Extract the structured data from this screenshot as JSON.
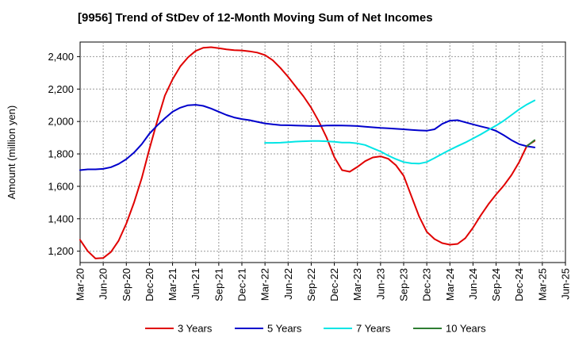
{
  "chart_data": {
    "type": "line",
    "title": "[9956]  Trend of StDev of 12-Month Moving Sum of Net Incomes",
    "xlabel": "",
    "ylabel": "Amount (million yen)",
    "ylim": [
      1130,
      2490
    ],
    "yticks": [
      1200,
      1400,
      1600,
      1800,
      2000,
      2200,
      2400
    ],
    "ytick_labels": [
      "1,200",
      "1,400",
      "1,600",
      "1,800",
      "2,000",
      "2,200",
      "2,400"
    ],
    "xticks": [
      "Mar-20",
      "Jun-20",
      "Sep-20",
      "Dec-20",
      "Mar-21",
      "Jun-21",
      "Sep-21",
      "Dec-21",
      "Mar-22",
      "Jun-22",
      "Sep-22",
      "Dec-22",
      "Mar-23",
      "Jun-23",
      "Sep-23",
      "Dec-23",
      "Mar-24",
      "Jun-24",
      "Sep-24",
      "Dec-24",
      "Mar-25",
      "Jun-25"
    ],
    "grid": true,
    "legend_position": "bottom",
    "series": [
      {
        "name": "3 Years",
        "color": "#e00000",
        "x": [
          0,
          1,
          2,
          3,
          4,
          5,
          6,
          7,
          8,
          9,
          10,
          11,
          12,
          13,
          14,
          15,
          16,
          17,
          18,
          19,
          20,
          21,
          22,
          23,
          24,
          25,
          26,
          27,
          28,
          29,
          30,
          31,
          32,
          33,
          34,
          35,
          36,
          37,
          38,
          39,
          40,
          41,
          42,
          43,
          44,
          45,
          46,
          47,
          48,
          49,
          50,
          51,
          52,
          53,
          54,
          55,
          56,
          57,
          58,
          59,
          60
        ],
        "values": [
          1270,
          1200,
          1155,
          1158,
          1195,
          1265,
          1370,
          1500,
          1650,
          1830,
          2000,
          2160,
          2260,
          2340,
          2395,
          2435,
          2455,
          2458,
          2452,
          2445,
          2440,
          2438,
          2433,
          2425,
          2410,
          2378,
          2330,
          2275,
          2215,
          2155,
          2085,
          2000,
          1900,
          1780,
          1700,
          1690,
          1720,
          1755,
          1778,
          1785,
          1770,
          1730,
          1665,
          1540,
          1415,
          1320,
          1275,
          1250,
          1240,
          1245,
          1280,
          1345,
          1420,
          1490,
          1550,
          1605,
          1670,
          1750,
          1850,
          1880,
          null
        ]
      },
      {
        "name": "5 Years",
        "color": "#0000cc",
        "x": [
          0,
          1,
          2,
          3,
          4,
          5,
          6,
          7,
          8,
          9,
          10,
          11,
          12,
          13,
          14,
          15,
          16,
          17,
          18,
          19,
          20,
          21,
          22,
          23,
          24,
          25,
          26,
          27,
          28,
          29,
          30,
          31,
          32,
          33,
          34,
          35,
          36,
          37,
          38,
          39,
          40,
          41,
          42,
          43,
          44,
          45,
          46,
          47,
          48,
          49,
          50,
          51,
          52,
          53,
          54,
          55,
          56,
          57,
          58,
          59
        ],
        "values": [
          1700,
          1705,
          1705,
          1708,
          1718,
          1738,
          1768,
          1808,
          1860,
          1925,
          1975,
          2020,
          2060,
          2085,
          2100,
          2103,
          2096,
          2080,
          2060,
          2040,
          2025,
          2015,
          2008,
          1998,
          1988,
          1982,
          1978,
          1977,
          1975,
          1974,
          1972,
          1972,
          1975,
          1976,
          1975,
          1974,
          1972,
          1968,
          1964,
          1960,
          1958,
          1955,
          1952,
          1948,
          1945,
          1943,
          1952,
          1985,
          2005,
          2008,
          1995,
          1982,
          1970,
          1958,
          1942,
          1915,
          1885,
          1860,
          1847,
          1840
        ]
      },
      {
        "name": "7 Years",
        "color": "#00e5e5",
        "x": [
          24,
          25,
          26,
          27,
          28,
          29,
          30,
          31,
          32,
          33,
          34,
          35,
          36,
          37,
          38,
          39,
          40,
          41,
          42,
          43,
          44,
          45,
          46,
          47,
          48,
          49,
          50,
          51,
          52,
          53,
          54,
          55,
          56,
          57,
          58,
          59
        ],
        "values": [
          1868,
          1868,
          1869,
          1872,
          1876,
          1878,
          1880,
          1880,
          1878,
          1875,
          1870,
          1870,
          1865,
          1855,
          1835,
          1815,
          1790,
          1768,
          1750,
          1742,
          1740,
          1750,
          1775,
          1800,
          1825,
          1848,
          1870,
          1895,
          1920,
          1948,
          1975,
          2005,
          2040,
          2075,
          2105,
          2130
        ]
      },
      {
        "name": "10 Years",
        "color": "#2e7d32",
        "x": [
          58,
          59
        ],
        "values": [
          1848,
          1885
        ]
      }
    ]
  }
}
